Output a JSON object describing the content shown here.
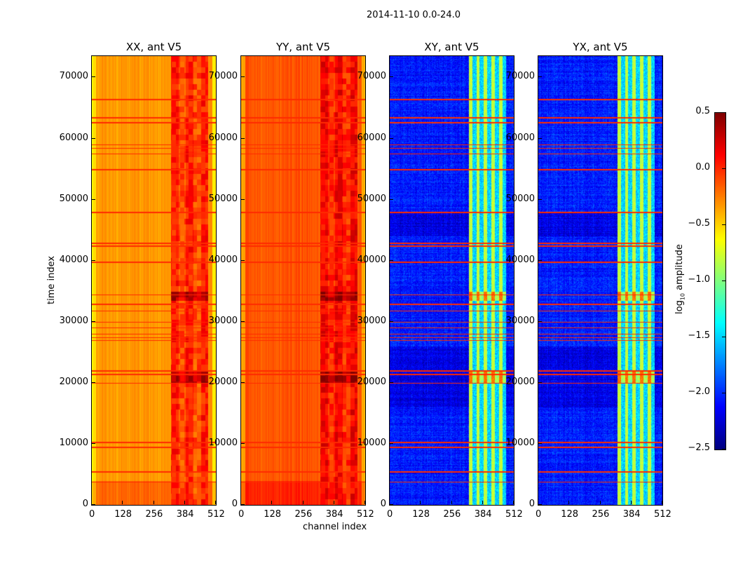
{
  "chart_data": {
    "type": "heatmap",
    "title": "2014-11-10 0.0-24.0",
    "xlabel": "channel index",
    "ylabel": "time index",
    "xlim": [
      0,
      512
    ],
    "ylim": [
      0,
      73500
    ],
    "xticks": [
      "0",
      "128",
      "256",
      "384",
      "512"
    ],
    "yticks": [
      "0",
      "10000",
      "20000",
      "30000",
      "40000",
      "50000",
      "60000",
      "70000"
    ],
    "panels": [
      {
        "title": "XX, ant V5",
        "kind": "auto",
        "background_level": -0.4,
        "band_channels": [
          325,
          480
        ],
        "band_level": 0.05
      },
      {
        "title": "YY, ant V5",
        "kind": "auto",
        "background_level": -0.2,
        "band_channels": [
          325,
          480
        ],
        "band_level": 0.15
      },
      {
        "title": "XY, ant V5",
        "kind": "cross",
        "background_level": -2.2,
        "band_channels": [
          325,
          480
        ],
        "band_level": -0.9
      },
      {
        "title": "YX, ant V5",
        "kind": "cross",
        "background_level": -2.2,
        "band_channels": [
          325,
          480
        ],
        "band_level": -0.9
      }
    ],
    "flagged_time_indices": [
      3800,
      5500,
      9500,
      10300,
      20000,
      21500,
      22000,
      27000,
      27500,
      28000,
      29000,
      30000,
      31800,
      33000,
      34500,
      39800,
      42500,
      43000,
      48000,
      55000,
      57500,
      58500,
      59000,
      62700,
      63500,
      66500
    ],
    "colorbar": {
      "label_main": "log",
      "label_sub": "10",
      "label_rest": " amplitude",
      "range": [
        -2.5,
        0.5
      ],
      "ticks": [
        "0.5",
        "0.0",
        "−0.5",
        "−1.0",
        "−1.5",
        "−2.0",
        "−2.5"
      ],
      "colormap": "jet"
    }
  }
}
